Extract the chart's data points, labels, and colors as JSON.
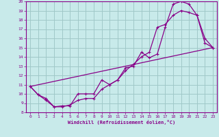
{
  "title": "",
  "xlabel": "Windchill (Refroidissement éolien,°C)",
  "bg_color": "#c8eaea",
  "grid_color": "#a0c8c8",
  "line_color": "#880088",
  "xlim": [
    -0.5,
    23.5
  ],
  "ylim": [
    8,
    20
  ],
  "xticks": [
    0,
    1,
    2,
    3,
    4,
    5,
    6,
    7,
    8,
    9,
    10,
    11,
    12,
    13,
    14,
    15,
    16,
    17,
    18,
    19,
    20,
    21,
    22,
    23
  ],
  "yticks": [
    8,
    9,
    10,
    11,
    12,
    13,
    14,
    15,
    16,
    17,
    18,
    19,
    20
  ],
  "line1_x": [
    0,
    1,
    2,
    3,
    4,
    5,
    6,
    7,
    8,
    9,
    10,
    11,
    12,
    13,
    14,
    15,
    16,
    17,
    18,
    19,
    20,
    21,
    22,
    23
  ],
  "line1_y": [
    10.8,
    9.9,
    9.5,
    8.6,
    8.7,
    8.7,
    10.0,
    10.0,
    10.0,
    11.5,
    11.0,
    11.5,
    12.8,
    13.0,
    14.5,
    13.9,
    14.3,
    17.2,
    19.7,
    20.0,
    19.7,
    18.5,
    16.0,
    15.0
  ],
  "line2_x": [
    0,
    1,
    2,
    3,
    4,
    5,
    6,
    7,
    8,
    9,
    10,
    11,
    12,
    13,
    14,
    15,
    16,
    17,
    18,
    19,
    20,
    21,
    22,
    23
  ],
  "line2_y": [
    10.8,
    9.9,
    9.3,
    8.6,
    8.6,
    8.8,
    9.3,
    9.5,
    9.5,
    10.5,
    11.0,
    11.5,
    12.5,
    13.2,
    14.0,
    14.5,
    17.2,
    17.5,
    18.5,
    19.0,
    18.8,
    18.5,
    15.5,
    15.0
  ],
  "line3_x": [
    0,
    23
  ],
  "line3_y": [
    10.8,
    15.0
  ]
}
